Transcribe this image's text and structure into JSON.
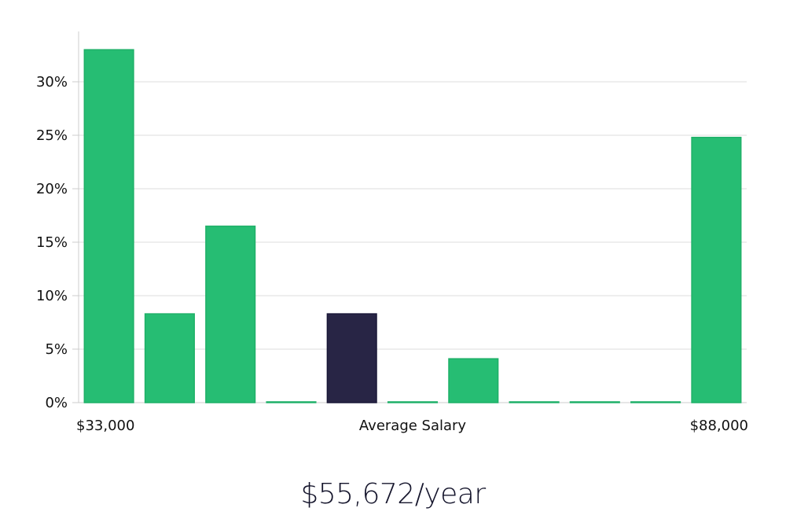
{
  "chart_data": {
    "type": "bar",
    "title": "",
    "xlabel": "Average Salary",
    "ylabel": "",
    "x_range_labels": {
      "min": "$33,000",
      "max": "$88,000"
    },
    "y_ticks": [
      "0%",
      "5%",
      "10%",
      "15%",
      "20%",
      "25%",
      "30%"
    ],
    "ylim": [
      0,
      34
    ],
    "grid": true,
    "bars": [
      {
        "value": 33.0,
        "highlight": false
      },
      {
        "value": 8.3,
        "highlight": false
      },
      {
        "value": 16.5,
        "highlight": false
      },
      {
        "value": 0,
        "highlight": false
      },
      {
        "value": 8.3,
        "highlight": true
      },
      {
        "value": 0,
        "highlight": false
      },
      {
        "value": 4.1,
        "highlight": false
      },
      {
        "value": 0,
        "highlight": false
      },
      {
        "value": 0,
        "highlight": false
      },
      {
        "value": 0,
        "highlight": false
      },
      {
        "value": 24.8,
        "highlight": false
      }
    ],
    "colors": {
      "bar": "#26bd73",
      "bar_stroke": "#1fb068",
      "highlight": "#282545",
      "grid": "#dddddd",
      "axis": "#cccccc"
    }
  },
  "salary_text": "$55,672/year"
}
